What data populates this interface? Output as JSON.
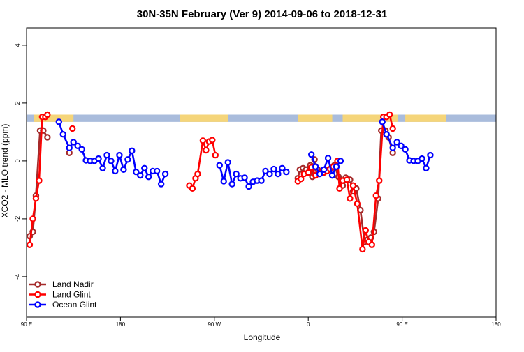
{
  "chart_data": {
    "type": "line",
    "title": "30N-35N February (Ver 9)   2014-09-06 to 2018-12-31",
    "xlabel": "Longitude",
    "ylabel": "XCO2 - MLO trend (ppm)",
    "xlim": [
      90,
      540
    ],
    "ylim": [
      -5.4,
      4.6
    ],
    "x_ticks": [
      {
        "value": 90,
        "label": "90 E"
      },
      {
        "value": 180,
        "label": "180"
      },
      {
        "value": 270,
        "label": "90 W"
      },
      {
        "value": 360,
        "label": "0"
      },
      {
        "value": 450,
        "label": "90 E"
      },
      {
        "value": 540,
        "label": "180"
      }
    ],
    "y_ticks": [
      {
        "value": -4,
        "label": "-4"
      },
      {
        "value": -2,
        "label": "-2"
      },
      {
        "value": 0,
        "label": "0"
      },
      {
        "value": 2,
        "label": "2"
      },
      {
        "value": 4,
        "label": "4"
      }
    ],
    "legend_position": "bottom-left",
    "land_band": {
      "y_range": [
        1.35,
        1.6
      ],
      "ocean_color": "#a9bcdc",
      "land_color": "#f5d57a",
      "land_segments": [
        [
          97,
          135
        ],
        [
          237,
          283
        ],
        [
          350,
          383
        ],
        [
          393,
          446
        ],
        [
          453,
          492
        ]
      ]
    },
    "series": [
      {
        "name": "Land Nadir",
        "color": "#a52a2a",
        "points": [
          [
            93,
            -2.6
          ],
          [
            96,
            -2.45
          ],
          [
            99,
            -1.2
          ],
          [
            103,
            1.05
          ],
          [
            106,
            1.05
          ],
          [
            110,
            0.82
          ],
          [
            131,
            0.28
          ],
          [
            350,
            -0.6
          ],
          [
            352,
            -0.3
          ],
          [
            355,
            -0.25
          ],
          [
            358,
            -0.3
          ],
          [
            362,
            -0.15
          ],
          [
            364,
            -0.55
          ],
          [
            366,
            0.05
          ],
          [
            369,
            -0.3
          ],
          [
            372,
            -0.38
          ],
          [
            375,
            -0.35
          ],
          [
            379,
            -0.32
          ],
          [
            382,
            -0.25
          ],
          [
            385,
            -0.15
          ],
          [
            389,
            -0.55
          ],
          [
            393,
            -0.85
          ],
          [
            396,
            -0.58
          ],
          [
            400,
            -0.65
          ],
          [
            403,
            -1.05
          ],
          [
            406,
            -0.95
          ],
          [
            410,
            -1.7
          ],
          [
            414,
            -2.8
          ],
          [
            417,
            -2.72
          ],
          [
            420,
            -2.65
          ],
          [
            423,
            -2.45
          ],
          [
            427,
            -1.3
          ],
          [
            430,
            1.05
          ],
          [
            434,
            1.05
          ],
          [
            437,
            0.82
          ],
          [
            441,
            0.28
          ]
        ]
      },
      {
        "name": "Land Glint",
        "color": "#ff0000",
        "points": [
          [
            93,
            -2.9
          ],
          [
            96,
            -2.0
          ],
          [
            99,
            -1.3
          ],
          [
            102,
            -0.68
          ],
          [
            105,
            1.52
          ],
          [
            108,
            1.52
          ],
          [
            110,
            1.6
          ],
          [
            134,
            1.12
          ],
          [
            246,
            -0.85
          ],
          [
            249,
            -0.95
          ],
          [
            252,
            -0.6
          ],
          [
            254,
            -0.45
          ],
          [
            259,
            0.7
          ],
          [
            262,
            0.37
          ],
          [
            265,
            0.67
          ],
          [
            268,
            0.72
          ],
          [
            271,
            0.2
          ],
          [
            350,
            -0.7
          ],
          [
            353,
            -0.62
          ],
          [
            356,
            -0.45
          ],
          [
            360,
            -0.4
          ],
          [
            363,
            -0.22
          ],
          [
            367,
            -0.5
          ],
          [
            371,
            -0.42
          ],
          [
            375,
            -0.4
          ],
          [
            378,
            -0.35
          ],
          [
            381,
            -0.28
          ],
          [
            384,
            -0.2
          ],
          [
            388,
            0.0
          ],
          [
            390,
            -0.95
          ],
          [
            393,
            -0.68
          ],
          [
            397,
            -0.65
          ],
          [
            400,
            -1.3
          ],
          [
            403,
            -0.85
          ],
          [
            407,
            -1.48
          ],
          [
            412,
            -3.05
          ],
          [
            415,
            -2.4
          ],
          [
            418,
            -2.8
          ],
          [
            421,
            -2.9
          ],
          [
            425,
            -1.2
          ],
          [
            428,
            -0.68
          ],
          [
            432,
            1.52
          ],
          [
            435,
            1.52
          ],
          [
            438,
            1.6
          ],
          [
            441,
            1.12
          ]
        ]
      },
      {
        "name": "Ocean Glint",
        "color": "#0000ff",
        "points": [
          [
            121,
            1.35
          ],
          [
            125,
            0.92
          ],
          [
            131,
            0.45
          ],
          [
            135,
            0.65
          ],
          [
            139,
            0.52
          ],
          [
            143,
            0.4
          ],
          [
            147,
            0.02
          ],
          [
            151,
            0.0
          ],
          [
            155,
            0.0
          ],
          [
            159,
            0.08
          ],
          [
            163,
            -0.25
          ],
          [
            167,
            0.2
          ],
          [
            171,
            0.0
          ],
          [
            175,
            -0.35
          ],
          [
            179,
            0.2
          ],
          [
            183,
            -0.3
          ],
          [
            187,
            0.05
          ],
          [
            191,
            0.35
          ],
          [
            195,
            -0.38
          ],
          [
            199,
            -0.5
          ],
          [
            203,
            -0.25
          ],
          [
            207,
            -0.55
          ],
          [
            211,
            -0.35
          ],
          [
            215,
            -0.35
          ],
          [
            219,
            -0.8
          ],
          [
            223,
            -0.45
          ],
          [
            275,
            -0.15
          ],
          [
            279,
            -0.7
          ],
          [
            283,
            -0.05
          ],
          [
            287,
            -0.8
          ],
          [
            291,
            -0.45
          ],
          [
            295,
            -0.6
          ],
          [
            299,
            -0.58
          ],
          [
            303,
            -0.88
          ],
          [
            307,
            -0.72
          ],
          [
            311,
            -0.68
          ],
          [
            315,
            -0.68
          ],
          [
            319,
            -0.35
          ],
          [
            323,
            -0.45
          ],
          [
            327,
            -0.28
          ],
          [
            331,
            -0.45
          ],
          [
            335,
            -0.25
          ],
          [
            339,
            -0.38
          ],
          [
            363,
            0.22
          ],
          [
            367,
            -0.2
          ],
          [
            371,
            -0.45
          ],
          [
            375,
            -0.3
          ],
          [
            379,
            0.1
          ],
          [
            383,
            -0.5
          ],
          [
            387,
            -0.2
          ],
          [
            391,
            0.0
          ],
          [
            431,
            1.35
          ],
          [
            435,
            0.92
          ],
          [
            441,
            0.45
          ],
          [
            445,
            0.65
          ],
          [
            449,
            0.52
          ],
          [
            453,
            0.4
          ],
          [
            457,
            0.02
          ],
          [
            461,
            0.0
          ],
          [
            465,
            0.0
          ],
          [
            469,
            0.08
          ],
          [
            473,
            -0.25
          ],
          [
            477,
            0.2
          ]
        ]
      }
    ]
  }
}
